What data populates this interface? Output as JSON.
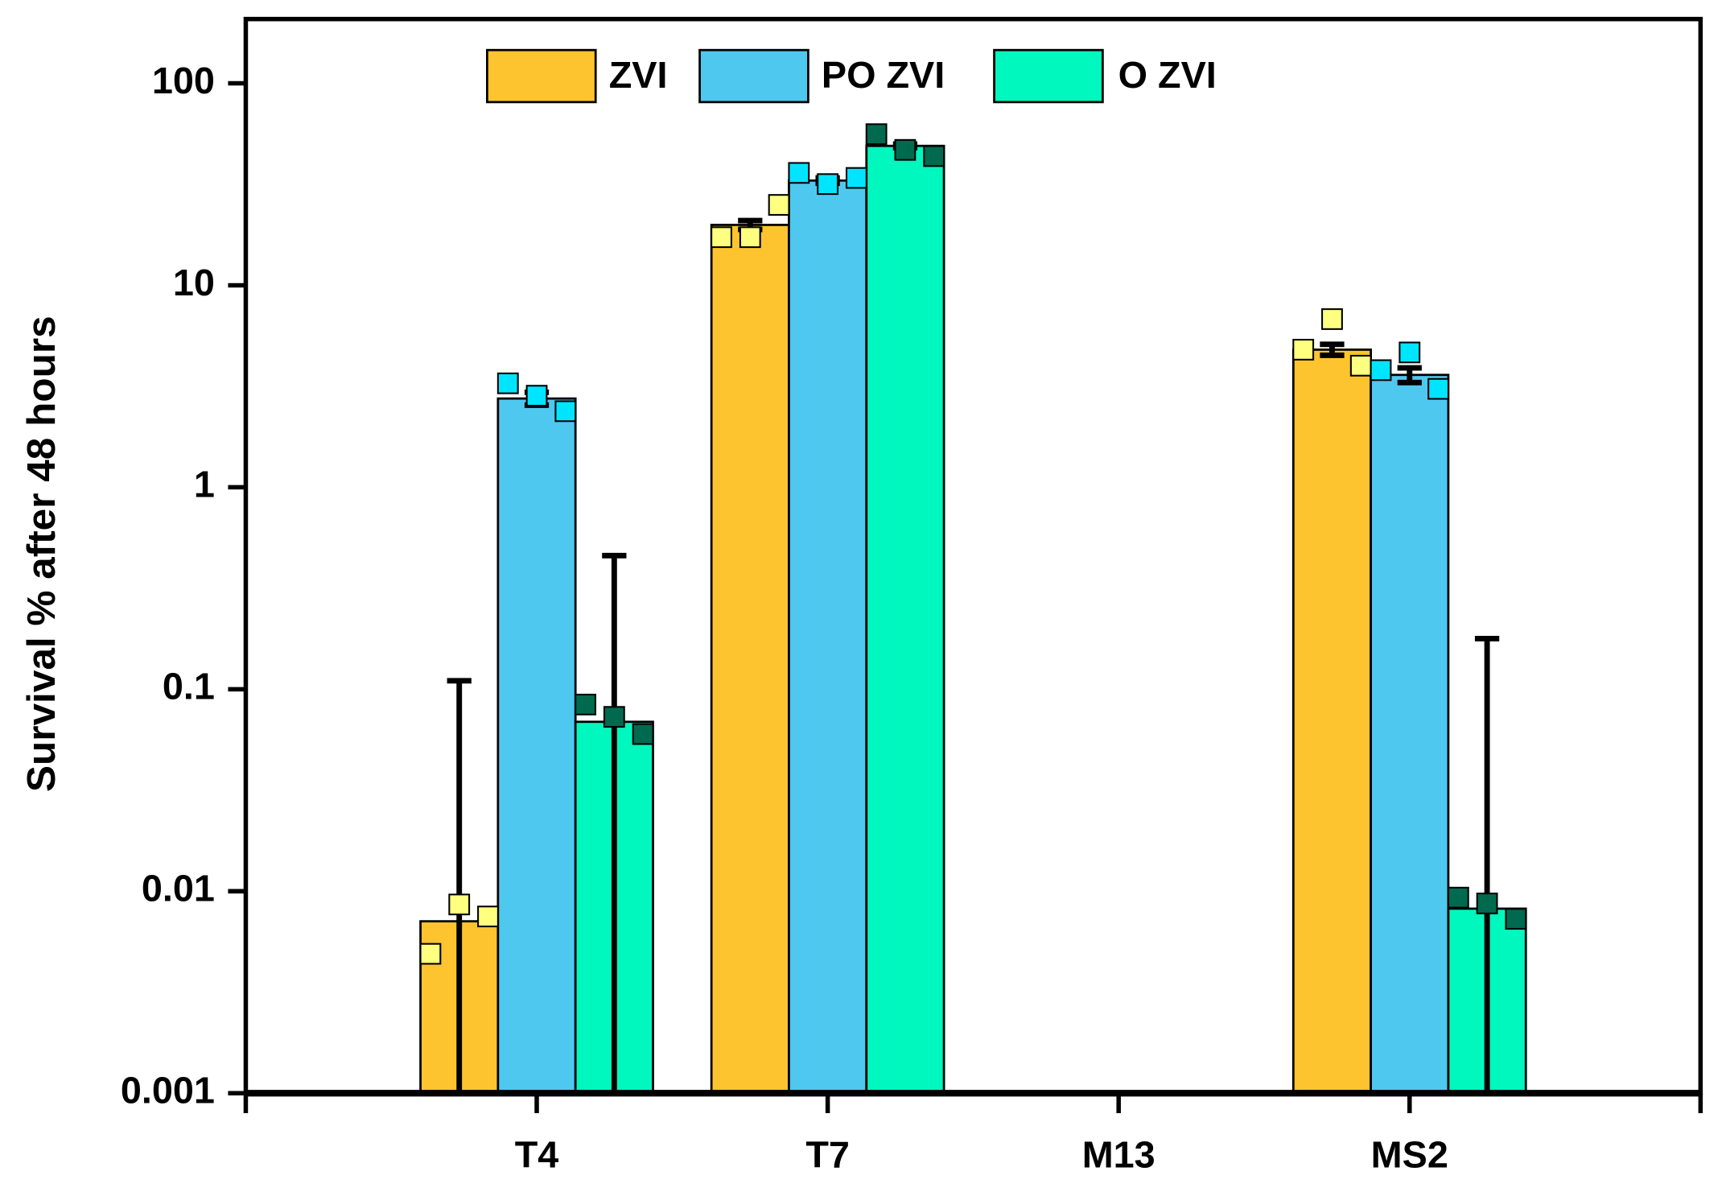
{
  "chart_data": {
    "type": "bar",
    "ylabel": "Survival % after 48 hours",
    "log_y": true,
    "ylim": [
      0.001,
      208
    ],
    "yticks": [
      0.001,
      0.01,
      0.1,
      1,
      10,
      100
    ],
    "categories": [
      "T4",
      "T7",
      "M13",
      "MS2"
    ],
    "legend": "top",
    "series": [
      {
        "name": "ZVI",
        "color": "#fdc42f",
        "point_color": "#ffff80",
        "values": [
          0.0071,
          19.9,
          null,
          4.8
        ],
        "errors": [
          0.103,
          1,
          null,
          0.3
        ],
        "points": [
          [
            0.0049,
            0.0086,
            0.0075
          ],
          [
            17.3,
            17.3,
            25
          ],
          null,
          [
            4.8,
            6.8,
            4.0
          ]
        ]
      },
      {
        "name": "PO ZVI",
        "color": "#4fc8f0",
        "point_color": "#00e5ff",
        "values": [
          2.75,
          33,
          null,
          3.6
        ],
        "errors": [
          0.2,
          1,
          null,
          0.3
        ],
        "points": [
          [
            3.27,
            2.84,
            2.38
          ],
          [
            36,
            31.7,
            34
          ],
          null,
          [
            3.8,
            4.65,
            3.07
          ]
        ]
      },
      {
        "name": "O ZVI",
        "color": "#00f7bd",
        "point_color": "#006a4e",
        "values": [
          0.069,
          49,
          null,
          0.0082
        ],
        "errors": [
          0.39,
          1,
          null,
          0.17
        ],
        "points": [
          [
            0.084,
            0.073,
            0.06
          ],
          [
            56,
            46.8,
            43.6
          ],
          null,
          [
            0.0093,
            0.0087,
            0.0073
          ]
        ]
      }
    ]
  }
}
